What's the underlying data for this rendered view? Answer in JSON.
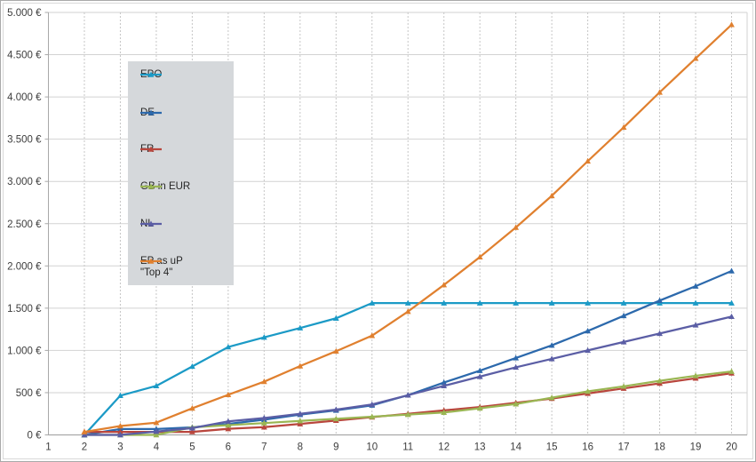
{
  "chart_data": {
    "type": "line",
    "title": "",
    "xlabel": "",
    "ylabel": "",
    "x_labels": [
      "1",
      "2",
      "3",
      "4",
      "5",
      "6",
      "7",
      "8",
      "9",
      "10",
      "11",
      "12",
      "13",
      "14",
      "15",
      "16",
      "17",
      "18",
      "19",
      "20"
    ],
    "y_axis_labels": [
      "0 €",
      "500 €",
      "1.000 €",
      "1.500 €",
      "2.000 €",
      "2.500 €",
      "3.000 €",
      "3.500 €",
      "4.000 €",
      "4.500 €",
      "5.000 €"
    ],
    "ylim": [
      0,
      5000
    ],
    "ytick_step": 500,
    "grid": {
      "horizontal": "solid",
      "vertical": "dashed"
    },
    "legend_position": "inside-upper-left",
    "currency": "EUR",
    "series": [
      {
        "name": "EPO",
        "legend_lines": [
          "EPO"
        ],
        "color": "#1b9ac6",
        "values": [
          null,
          0,
          465,
          580,
          810,
          1040,
          1155,
          1265,
          1380,
          1560,
          1560,
          1560,
          1560,
          1560,
          1560,
          1560,
          1560,
          1560,
          1560,
          1560
        ]
      },
      {
        "name": "DE",
        "legend_lines": [
          "DE"
        ],
        "color": "#2c69ac",
        "values": [
          null,
          0,
          70,
          70,
          90,
          130,
          180,
          240,
          290,
          350,
          470,
          620,
          760,
          910,
          1060,
          1230,
          1410,
          1590,
          1760,
          1940
        ]
      },
      {
        "name": "FR",
        "legend_lines": [
          "FR"
        ],
        "color": "#b9463d",
        "values": [
          null,
          36,
          36,
          36,
          36,
          72,
          92,
          130,
          170,
          210,
          250,
          290,
          330,
          380,
          430,
          490,
          550,
          610,
          670,
          730
        ]
      },
      {
        "name": "GB in EUR",
        "legend_lines": [
          "GB in EUR"
        ],
        "color": "#9ab653",
        "values": [
          null,
          0,
          0,
          0,
          90,
          115,
          140,
          165,
          190,
          215,
          240,
          265,
          315,
          365,
          440,
          515,
          575,
          640,
          700,
          750
        ]
      },
      {
        "name": "NL",
        "legend_lines": [
          "NL"
        ],
        "color": "#5b5ea5",
        "values": [
          null,
          0,
          0,
          40,
          80,
          160,
          200,
          250,
          300,
          360,
          470,
          580,
          690,
          800,
          900,
          1000,
          1100,
          1200,
          1300,
          1400
        ]
      },
      {
        "name": "EP as uP \"Top 4\"",
        "legend_lines": [
          "EP as uP",
          "\"Top 4\""
        ],
        "color": "#e0802f",
        "values": [
          null,
          35,
          105,
          145,
          315,
          475,
          630,
          815,
          990,
          1175,
          1460,
          1775,
          2105,
          2455,
          2830,
          3240,
          3640,
          4055,
          4455,
          4855
        ]
      }
    ]
  }
}
